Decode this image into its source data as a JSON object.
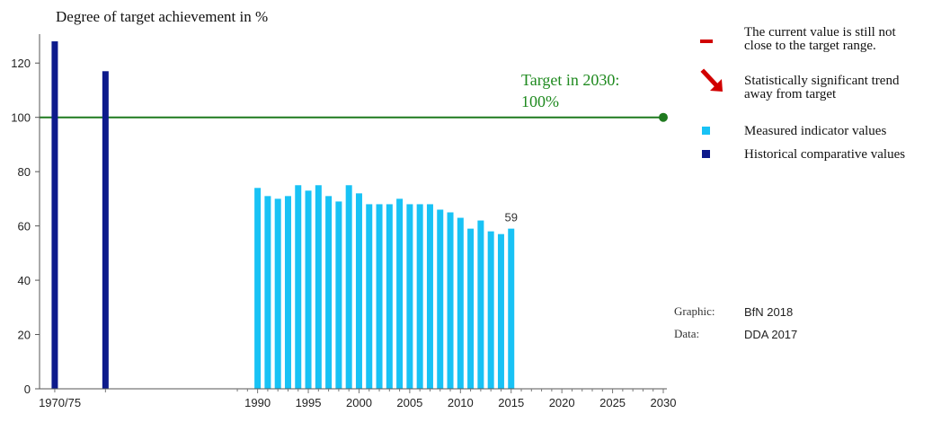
{
  "chart_data": {
    "type": "bar",
    "title": "Degree of target achievement in %",
    "xlabel": "",
    "ylabel": "",
    "ylim": [
      0,
      130
    ],
    "yticks": [
      0,
      20,
      40,
      60,
      80,
      100,
      120
    ],
    "xlim": [
      1968.5,
      2030
    ],
    "xtick_labels": [
      {
        "x": 1970.5,
        "label": "1970/75"
      },
      {
        "x": 1990,
        "label": "1990"
      },
      {
        "x": 1995,
        "label": "1995"
      },
      {
        "x": 2000,
        "label": "2000"
      },
      {
        "x": 2005,
        "label": "2005"
      },
      {
        "x": 2010,
        "label": "2010"
      },
      {
        "x": 2015,
        "label": "2015"
      },
      {
        "x": 2020,
        "label": "2020"
      },
      {
        "x": 2025,
        "label": "2025"
      },
      {
        "x": 2030,
        "label": "2030"
      }
    ],
    "series": [
      {
        "name": "Historical comparative values",
        "color": "#0d1a8c",
        "x": [
          1970,
          1975
        ],
        "values": [
          128,
          117
        ]
      },
      {
        "name": "Measured indicator values",
        "color": "#18c2f5",
        "x": [
          1990,
          1991,
          1992,
          1993,
          1994,
          1995,
          1996,
          1997,
          1998,
          1999,
          2000,
          2001,
          2002,
          2003,
          2004,
          2005,
          2006,
          2007,
          2008,
          2009,
          2010,
          2011,
          2012,
          2013,
          2014,
          2015
        ],
        "values": [
          74,
          71,
          70,
          71,
          75,
          73,
          75,
          71,
          69,
          75,
          72,
          68,
          68,
          68,
          70,
          68,
          68,
          68,
          66,
          65,
          63,
          59,
          62,
          58,
          57,
          59
        ]
      }
    ],
    "data_labels": [
      {
        "x": 2015,
        "text": "59"
      }
    ],
    "target": {
      "year": 2030,
      "value": 100,
      "label_line1": "Target in 2030:",
      "label_line2": "100%",
      "color": "#1f7a1f"
    },
    "legend": {
      "placement": "right",
      "items": [
        {
          "symbol": "dash",
          "color": "#d10000",
          "line1": "The current value is still not",
          "line2": "close to the target range."
        },
        {
          "symbol": "arrow-down-right",
          "color": "#d10000",
          "line1": "Statistically significant trend",
          "line2": "away from target"
        },
        {
          "symbol": "square",
          "color": "#18c2f5",
          "line1": "Measured indicator values",
          "line2": ""
        },
        {
          "symbol": "square",
          "color": "#0d1a8c",
          "line1": "Historical comparative values",
          "line2": ""
        }
      ]
    },
    "source": {
      "graphic_key": "Graphic:",
      "graphic_val": "BfN 2018",
      "data_key": "Data:",
      "data_val": "DDA 2017"
    }
  }
}
